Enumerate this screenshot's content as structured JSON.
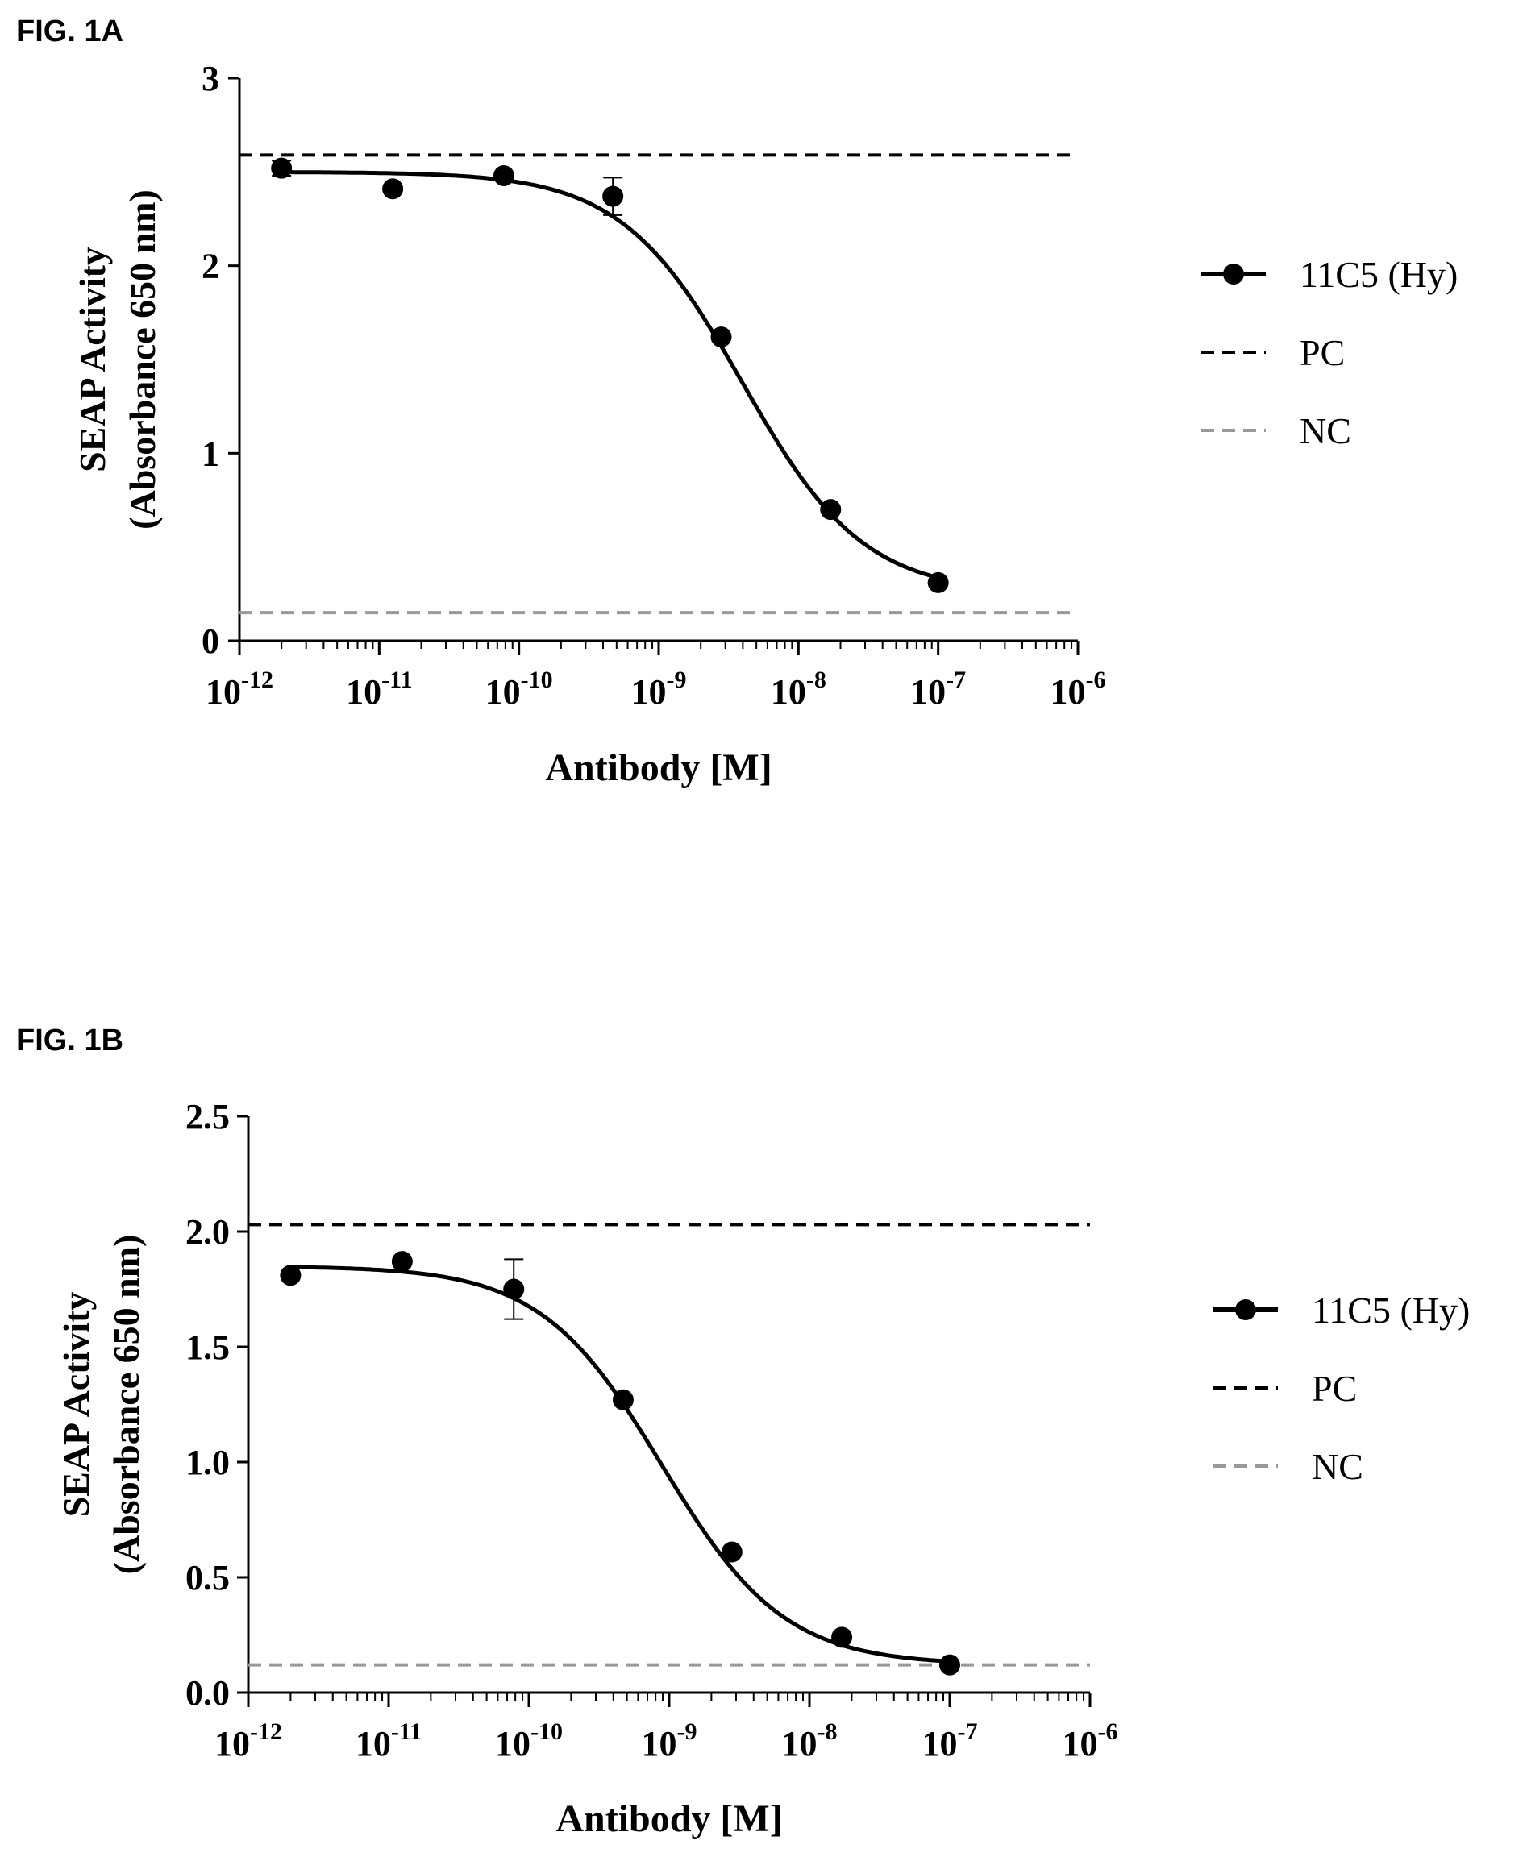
{
  "figures": [
    {
      "label": "FIG. 1A"
    },
    {
      "label": "FIG. 1B"
    }
  ],
  "chart_data": [
    {
      "type": "line",
      "figure_label": "FIG. 1A",
      "xlabel": "Antibody [M]",
      "ylabel": [
        "SEAP Activity",
        "(Absorbance 650 nm)"
      ],
      "x_scale": "log",
      "xlim": [
        1e-12,
        1e-06
      ],
      "ylim": [
        0,
        3
      ],
      "y_ticks": [
        0,
        1,
        2,
        3
      ],
      "y_tick_labels": [
        "0",
        "1",
        "2",
        "3"
      ],
      "x_tick_exponents": [
        "-12",
        "-11",
        "-10",
        "-9",
        "-8",
        "-7",
        "-6"
      ],
      "x_tick_base": "10",
      "grid": false,
      "legend_position": "right",
      "series": [
        {
          "name": "11C5 (Hy)",
          "style": "solid line with filled circles",
          "color": "#000000",
          "x": [
            2e-12,
            1.25e-11,
            7.8e-11,
            4.7e-10,
            2.8e-09,
            1.7e-08,
            1e-07
          ],
          "y": [
            2.52,
            2.41,
            2.48,
            2.37,
            1.62,
            0.7,
            0.31
          ],
          "error": [
            0.04,
            0.0,
            0.0,
            0.1,
            0.0,
            0.0,
            0.0
          ],
          "fit": {
            "bottom": 0.25,
            "top": 2.5,
            "logEC50": -8.4,
            "hill": 1.0
          }
        },
        {
          "name": "PC",
          "style": "dashed horizontal",
          "color": "#000000",
          "y": 2.59
        },
        {
          "name": "NC",
          "style": "dashed horizontal",
          "color": "#999999",
          "y": 0.15
        }
      ]
    },
    {
      "type": "line",
      "figure_label": "FIG. 1B",
      "xlabel": "Antibody [M]",
      "ylabel": [
        "SEAP Activity",
        "(Absorbance 650 nm)"
      ],
      "x_scale": "log",
      "xlim": [
        1e-12,
        1e-06
      ],
      "ylim": [
        0,
        2.5
      ],
      "y_ticks": [
        0,
        0.5,
        1.0,
        1.5,
        2.0,
        2.5
      ],
      "y_tick_labels": [
        "0.0",
        "0.5",
        "1.0",
        "1.5",
        "2.0",
        "2.5"
      ],
      "x_tick_exponents": [
        "-12",
        "-11",
        "-10",
        "-9",
        "-8",
        "-7",
        "-6"
      ],
      "x_tick_base": "10",
      "grid": false,
      "legend_position": "right",
      "series": [
        {
          "name": "11C5 (Hy)",
          "style": "solid line with filled circles",
          "color": "#000000",
          "x": [
            2e-12,
            1.25e-11,
            7.8e-11,
            4.7e-10,
            2.8e-09,
            1.7e-08,
            1e-07
          ],
          "y": [
            1.81,
            1.87,
            1.75,
            1.27,
            0.61,
            0.24,
            0.12
          ],
          "error": [
            0.0,
            0.0,
            0.13,
            0.0,
            0.0,
            0.0,
            0.0
          ],
          "fit": {
            "bottom": 0.12,
            "top": 1.85,
            "logEC50": -9.05,
            "hill": 1.0
          }
        },
        {
          "name": "PC",
          "style": "dashed horizontal",
          "color": "#000000",
          "y": 2.03
        },
        {
          "name": "NC",
          "style": "dashed horizontal",
          "color": "#999999",
          "y": 0.12
        }
      ]
    }
  ]
}
